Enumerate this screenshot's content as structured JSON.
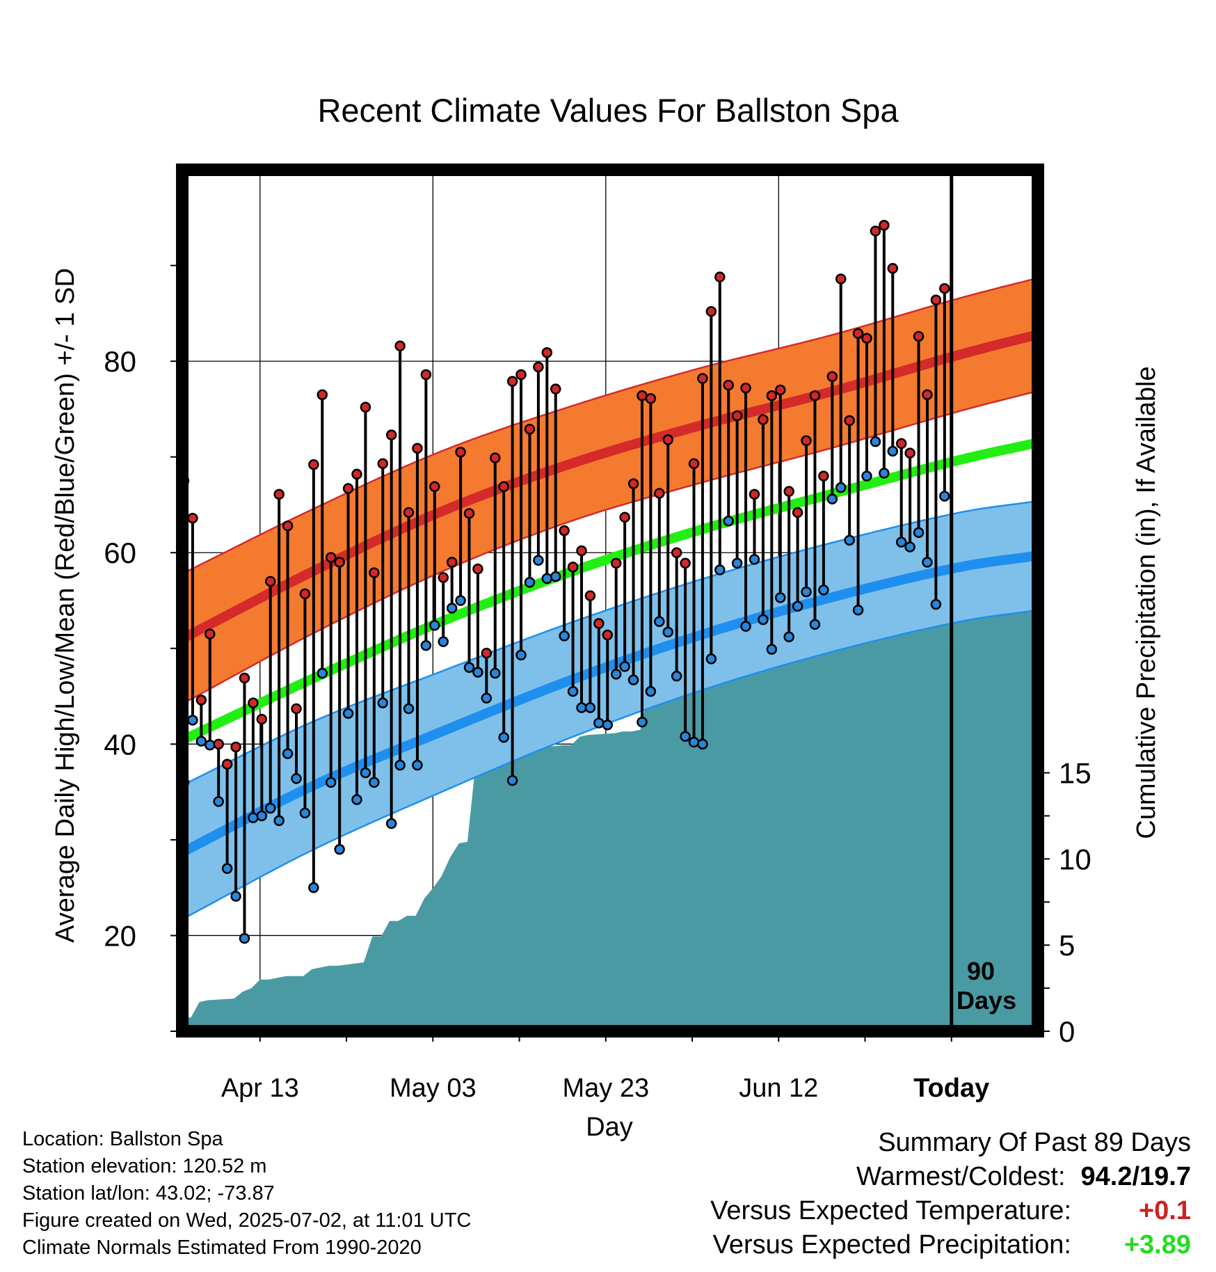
{
  "chart_data": {
    "type": "line",
    "title": "Recent Climate Values For Ballston Spa",
    "xlabel": "Day",
    "ylabel": "Average Daily High/Low/Mean (Red/Blue/Green) +/- 1 SD",
    "y2label": "Cumulative Precipitation (in), If Available",
    "ylim": [
      10,
      100
    ],
    "y2lim": [
      0,
      50
    ],
    "yticks": [
      "20",
      "40",
      "60",
      "80"
    ],
    "y2ticks": [
      "0",
      "5",
      "10",
      "15"
    ],
    "xticks": [
      "Apr 13",
      "May 03",
      "May 23",
      "Jun 12",
      "Today"
    ],
    "annotation": "90 Days",
    "colors": {
      "high_band": "#f47a30",
      "high_mean": "#d42a2a",
      "low_band": "#7fc0ea",
      "low_mean": "#1e8fee",
      "mean": "#22ee11",
      "precip": "#4a9aa3",
      "high_dot": "#d22828",
      "low_dot": "#2a86d8"
    },
    "normals": {
      "days": [
        0,
        15,
        30,
        45,
        60,
        75,
        90,
        99
      ],
      "high_mean": [
        51,
        58,
        64.3,
        69.3,
        73.3,
        76.8,
        80.7,
        82.8
      ],
      "high_sd": [
        6.8,
        6.5,
        6.3,
        6.0,
        6.0,
        5.9,
        5.9,
        5.9
      ],
      "low_mean": [
        28.7,
        35.6,
        41.3,
        46.7,
        51.4,
        55.3,
        58.5,
        59.7
      ],
      "low_sd": [
        7.0,
        6.7,
        6.3,
        6.0,
        5.8,
        5.7,
        5.7,
        5.7
      ],
      "mean": [
        40.4,
        46.8,
        52.8,
        58.0,
        62.4,
        66.1,
        69.7,
        71.5
      ]
    },
    "highs": [
      67.5,
      63.6,
      44.6,
      51.5,
      40.0,
      37.9,
      39.7,
      46.9,
      44.3,
      42.6,
      57.0,
      66.1,
      62.8,
      43.7,
      55.7,
      69.2,
      76.5,
      59.5,
      59.0,
      66.7,
      68.2,
      75.2,
      57.9,
      69.3,
      72.3,
      81.6,
      64.2,
      70.9,
      78.6,
      66.9,
      57.4,
      59.0,
      70.5,
      64.1,
      58.3,
      49.5,
      69.9,
      66.9,
      77.9,
      78.6,
      72.9,
      79.4,
      80.9,
      77.1,
      62.3,
      58.5,
      60.2,
      55.5,
      52.6,
      51.4,
      58.9,
      63.7,
      67.2,
      76.4,
      76.1,
      66.2,
      71.8,
      60.0,
      58.9,
      69.3,
      78.2,
      85.2,
      88.8,
      77.5,
      74.3,
      77.2,
      66.1,
      73.9,
      76.4,
      77.0,
      66.4,
      64.2,
      71.7,
      76.4,
      68.0,
      78.4,
      88.6,
      73.8,
      82.9,
      82.4,
      93.6,
      94.2,
      89.7,
      71.4,
      70.4,
      82.6,
      76.5,
      86.4,
      87.6
    ],
    "lows": [
      36.0,
      42.5,
      40.3,
      39.9,
      34.0,
      27.0,
      24.1,
      19.7,
      32.3,
      32.5,
      33.3,
      32.0,
      39.0,
      36.4,
      32.8,
      25.0,
      47.4,
      36.0,
      29.0,
      43.2,
      34.2,
      37.0,
      36.0,
      44.3,
      31.7,
      37.8,
      43.7,
      37.8,
      50.3,
      52.4,
      50.7,
      54.2,
      55.0,
      48.0,
      47.5,
      44.8,
      47.4,
      40.7,
      36.2,
      49.3,
      56.9,
      59.2,
      57.3,
      57.5,
      51.3,
      45.5,
      43.8,
      43.8,
      42.2,
      42.0,
      47.3,
      48.1,
      46.7,
      42.3,
      45.5,
      52.8,
      51.7,
      47.1,
      40.8,
      40.2,
      40.0,
      48.9,
      58.2,
      63.3,
      58.9,
      52.3,
      59.3,
      53.0,
      49.9,
      55.3,
      51.2,
      54.4,
      55.9,
      52.5,
      56.1,
      65.6,
      66.8,
      61.3,
      54.0,
      68.0,
      71.6,
      68.3,
      70.6,
      61.1,
      60.6,
      62.1,
      59.0,
      54.6,
      65.9
    ],
    "precip": {
      "days": [
        0,
        1,
        2,
        3,
        6,
        7,
        8,
        9,
        10,
        11,
        12,
        14,
        15,
        16,
        17,
        18,
        21,
        22,
        23,
        24,
        25,
        26,
        27,
        28,
        29,
        30,
        31,
        32,
        33,
        34,
        35,
        36,
        37,
        38,
        39,
        40,
        44,
        45,
        46,
        47,
        50,
        51,
        52,
        53,
        54,
        57,
        58,
        61,
        62,
        63,
        64,
        65,
        66,
        67,
        68,
        70,
        71,
        72,
        73,
        74,
        75,
        78,
        79,
        81,
        89,
        90,
        99
      ],
      "values": [
        0.8,
        0.8,
        1.7,
        1.8,
        1.9,
        2.3,
        2.5,
        3.0,
        3.0,
        3.1,
        3.2,
        3.2,
        3.6,
        3.7,
        3.8,
        3.8,
        4.0,
        5.5,
        5.5,
        6.4,
        6.4,
        6.7,
        6.7,
        7.7,
        8.3,
        9.0,
        10.1,
        10.9,
        11.0,
        15.8,
        15.8,
        16.0,
        16.0,
        16.2,
        16.4,
        16.4,
        16.6,
        16.6,
        17.1,
        17.2,
        17.3,
        17.4,
        17.4,
        17.5,
        20.0,
        20.0,
        19.9,
        20.3,
        22.2,
        23.8,
        24.0,
        24.6,
        25.5,
        26.6,
        26.8,
        26.8,
        26.9,
        27.2,
        27.2,
        27.4,
        27.5,
        27.6,
        27.8,
        27.9,
        28.1,
        28.3,
        28.3
      ]
    }
  },
  "info": {
    "location": "Location: Ballston Spa",
    "elevation": "Station elevation: 120.52 m",
    "latlon": "Station lat/lon: 43.02; -73.87",
    "created": "Figure created on Wed, 2025-07-02, at 11:01 UTC",
    "normals": "Climate Normals Estimated From 1990-2020"
  },
  "summary": {
    "title": "Summary Of Past 89 Days",
    "warmest_label": "Warmest/Coldest:",
    "warmest_value": "94.2/19.7",
    "temp_label": "Versus Expected Temperature:",
    "temp_value": "+0.1",
    "temp_color": "#cc2222",
    "precip_label": "Versus Expected Precipitation:",
    "precip_value": "+3.89",
    "precip_color": "#22dd22"
  }
}
